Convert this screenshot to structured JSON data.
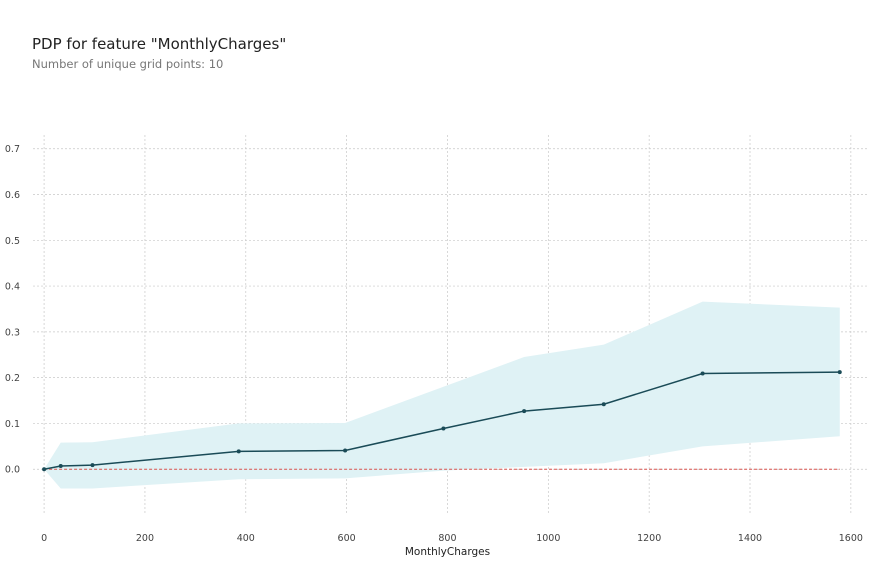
{
  "chart_data": {
    "type": "line",
    "title": "PDP for feature \"MonthlyCharges\"",
    "subtitle": "Number of unique grid points: 10",
    "xlabel": "MonthlyCharges",
    "ylabel": "",
    "xlim": [
      -22,
      1634
    ],
    "ylim": [
      -0.1,
      0.73
    ],
    "x_ticks": [
      0,
      200,
      400,
      600,
      800,
      1000,
      1200,
      1400,
      1600
    ],
    "y_ticks": [
      0.0,
      0.1,
      0.2,
      0.3,
      0.4,
      0.5,
      0.6,
      0.7
    ],
    "grid": true,
    "series": [
      {
        "x": [
          0,
          33,
          96,
          386,
          597,
          792,
          952,
          1110,
          1306,
          1578
        ],
        "values": [
          0.0,
          0.007,
          0.009,
          0.039,
          0.041,
          0.089,
          0.127,
          0.142,
          0.209,
          0.212
        ],
        "upper": [
          0.0,
          0.058,
          0.059,
          0.1,
          0.101,
          0.18,
          0.245,
          0.272,
          0.366,
          0.353
        ],
        "lower": [
          0.0,
          -0.042,
          -0.042,
          -0.022,
          -0.02,
          -0.003,
          0.005,
          0.013,
          0.05,
          0.072
        ]
      }
    ],
    "baseline": 0.0,
    "colors": {
      "line": "#1a4b57",
      "band": "#dff2f5",
      "baseline": "#d9534f",
      "grid": "#c8c8c8"
    }
  }
}
